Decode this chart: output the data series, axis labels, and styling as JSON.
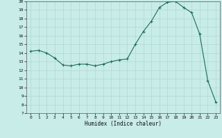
{
  "x": [
    0,
    1,
    2,
    3,
    4,
    5,
    6,
    7,
    8,
    9,
    10,
    11,
    12,
    13,
    14,
    15,
    16,
    17,
    18,
    19,
    20,
    21,
    22,
    23
  ],
  "y": [
    14.2,
    14.3,
    14.0,
    13.4,
    12.6,
    12.5,
    12.7,
    12.7,
    12.5,
    12.7,
    13.0,
    13.2,
    13.3,
    15.0,
    16.5,
    17.7,
    19.3,
    19.9,
    20.0,
    19.3,
    18.7,
    16.2,
    10.8,
    8.3
  ],
  "line_color": "#1a6b5a",
  "marker_color": "#1a6b5a",
  "bg_color": "#c8ece8",
  "grid_color": "#b0d8d4",
  "xlabel": "Humidex (Indice chaleur)",
  "ylim": [
    7,
    20
  ],
  "xlim": [
    -0.5,
    23.5
  ],
  "yticks": [
    7,
    8,
    9,
    10,
    11,
    12,
    13,
    14,
    15,
    16,
    17,
    18,
    19,
    20
  ],
  "xticks": [
    0,
    1,
    2,
    3,
    4,
    5,
    6,
    7,
    8,
    9,
    10,
    11,
    12,
    13,
    14,
    15,
    16,
    17,
    18,
    19,
    20,
    21,
    22,
    23
  ]
}
